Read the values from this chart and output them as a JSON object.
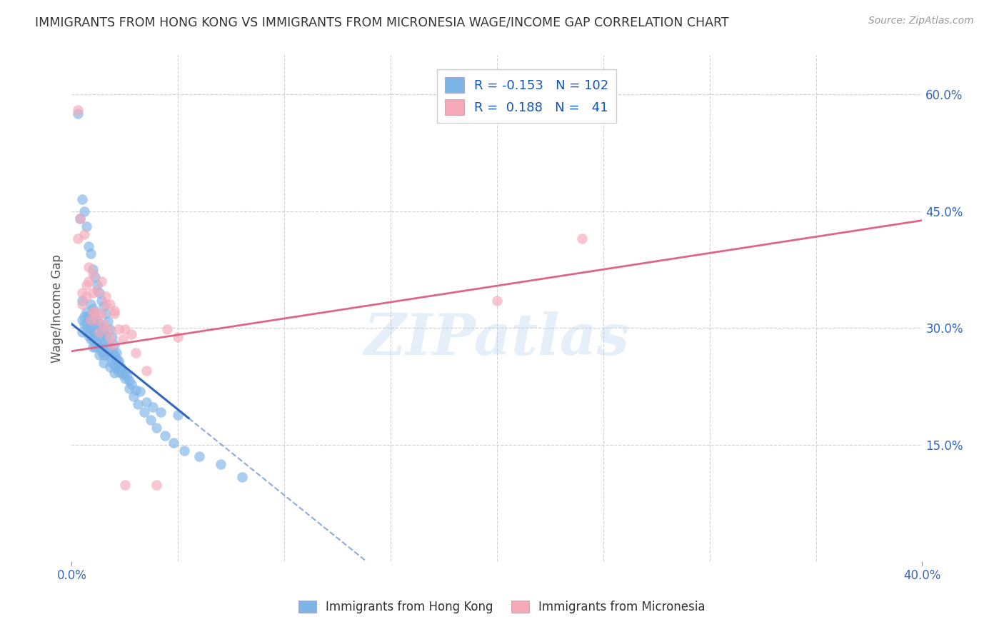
{
  "title": "IMMIGRANTS FROM HONG KONG VS IMMIGRANTS FROM MICRONESIA WAGE/INCOME GAP CORRELATION CHART",
  "source": "Source: ZipAtlas.com",
  "ylabel": "Wage/Income Gap",
  "x_min": 0.0,
  "x_max": 0.4,
  "y_min": 0.0,
  "y_max": 0.65,
  "y_ticks": [
    0.0,
    0.15,
    0.3,
    0.45,
    0.6
  ],
  "y_tick_labels_right": [
    "",
    "15.0%",
    "30.0%",
    "45.0%",
    "60.0%"
  ],
  "x_tick_left": 0.0,
  "x_tick_right": 0.4,
  "hk_R": -0.153,
  "hk_N": 102,
  "mic_R": 0.188,
  "mic_N": 41,
  "hk_color": "#7EB5E8",
  "mic_color": "#F4A8B8",
  "hk_line_color": "#3366BB",
  "mic_line_color": "#DD6688",
  "hk_scatter_x": [
    0.005,
    0.005,
    0.005,
    0.006,
    0.006,
    0.007,
    0.007,
    0.007,
    0.008,
    0.008,
    0.008,
    0.009,
    0.009,
    0.009,
    0.009,
    0.01,
    0.01,
    0.01,
    0.01,
    0.01,
    0.011,
    0.011,
    0.011,
    0.011,
    0.012,
    0.012,
    0.012,
    0.013,
    0.013,
    0.013,
    0.013,
    0.014,
    0.014,
    0.014,
    0.015,
    0.015,
    0.015,
    0.015,
    0.016,
    0.016,
    0.016,
    0.017,
    0.017,
    0.018,
    0.018,
    0.018,
    0.019,
    0.019,
    0.02,
    0.02,
    0.02,
    0.021,
    0.021,
    0.022,
    0.022,
    0.023,
    0.024,
    0.025,
    0.026,
    0.027,
    0.028,
    0.03,
    0.032,
    0.035,
    0.038,
    0.042,
    0.05,
    0.003,
    0.004,
    0.005,
    0.006,
    0.007,
    0.008,
    0.009,
    0.01,
    0.011,
    0.012,
    0.013,
    0.014,
    0.015,
    0.016,
    0.017,
    0.018,
    0.019,
    0.02,
    0.021,
    0.022,
    0.023,
    0.024,
    0.025,
    0.027,
    0.029,
    0.031,
    0.034,
    0.037,
    0.04,
    0.044,
    0.048,
    0.053,
    0.06,
    0.07,
    0.08
  ],
  "hk_scatter_y": [
    0.335,
    0.31,
    0.295,
    0.315,
    0.305,
    0.32,
    0.305,
    0.295,
    0.315,
    0.3,
    0.29,
    0.33,
    0.315,
    0.3,
    0.285,
    0.325,
    0.31,
    0.295,
    0.285,
    0.275,
    0.32,
    0.305,
    0.29,
    0.275,
    0.31,
    0.295,
    0.28,
    0.305,
    0.29,
    0.275,
    0.265,
    0.3,
    0.285,
    0.27,
    0.295,
    0.28,
    0.265,
    0.255,
    0.29,
    0.275,
    0.265,
    0.28,
    0.268,
    0.275,
    0.262,
    0.25,
    0.268,
    0.255,
    0.265,
    0.252,
    0.242,
    0.26,
    0.248,
    0.255,
    0.243,
    0.248,
    0.24,
    0.243,
    0.238,
    0.232,
    0.228,
    0.22,
    0.218,
    0.205,
    0.198,
    0.192,
    0.188,
    0.575,
    0.44,
    0.465,
    0.45,
    0.43,
    0.405,
    0.395,
    0.375,
    0.365,
    0.355,
    0.345,
    0.335,
    0.328,
    0.318,
    0.308,
    0.298,
    0.288,
    0.278,
    0.268,
    0.258,
    0.25,
    0.242,
    0.235,
    0.222,
    0.212,
    0.202,
    0.192,
    0.182,
    0.172,
    0.162,
    0.152,
    0.142,
    0.135,
    0.125,
    0.108
  ],
  "mic_scatter_x": [
    0.003,
    0.004,
    0.005,
    0.006,
    0.007,
    0.008,
    0.009,
    0.01,
    0.01,
    0.011,
    0.012,
    0.013,
    0.014,
    0.015,
    0.016,
    0.017,
    0.018,
    0.019,
    0.02,
    0.022,
    0.024,
    0.025,
    0.028,
    0.03,
    0.035,
    0.04,
    0.045,
    0.05,
    0.003,
    0.005,
    0.007,
    0.008,
    0.01,
    0.012,
    0.014,
    0.016,
    0.018,
    0.02,
    0.025,
    0.2,
    0.24
  ],
  "mic_scatter_y": [
    0.58,
    0.44,
    0.33,
    0.42,
    0.34,
    0.36,
    0.31,
    0.345,
    0.32,
    0.32,
    0.31,
    0.295,
    0.318,
    0.305,
    0.33,
    0.298,
    0.288,
    0.278,
    0.318,
    0.298,
    0.285,
    0.298,
    0.292,
    0.268,
    0.245,
    0.098,
    0.298,
    0.288,
    0.415,
    0.345,
    0.355,
    0.378,
    0.37,
    0.348,
    0.36,
    0.34,
    0.33,
    0.322,
    0.098,
    0.335,
    0.415
  ],
  "watermark": "ZIPatlas",
  "legend_hk_label": "Immigrants from Hong Kong",
  "legend_mic_label": "Immigrants from Micronesia",
  "hk_line_x_solid_end": 0.055,
  "hk_line_intercept": 0.305,
  "hk_line_slope": -2.2,
  "mic_line_intercept": 0.27,
  "mic_line_slope": 0.42
}
